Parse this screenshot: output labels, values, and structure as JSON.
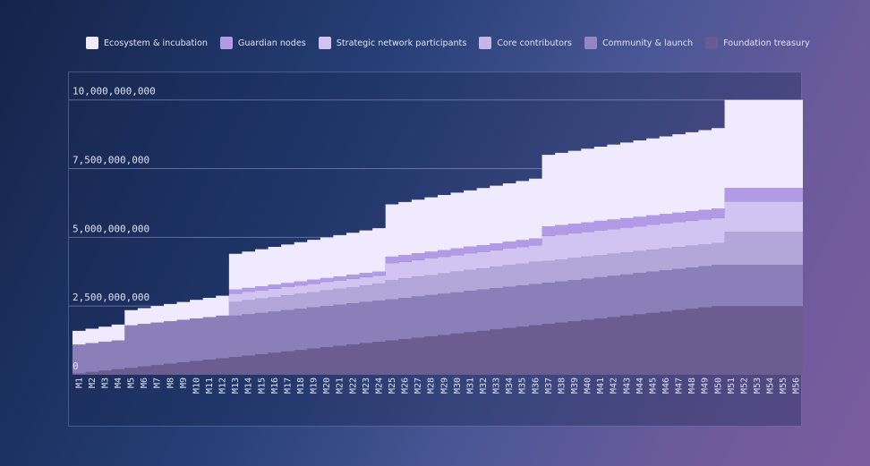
{
  "chart_data": {
    "type": "area",
    "stacked": true,
    "title": "",
    "xlabel": "",
    "ylabel": "",
    "ylim": [
      0,
      11000000000
    ],
    "grid": true,
    "legend_placement": "top",
    "yticks": [
      {
        "value": 0,
        "label": "0"
      },
      {
        "value": 2500000000,
        "label": "2,500,000,000"
      },
      {
        "value": 5000000000,
        "label": "5,000,000,000"
      },
      {
        "value": 7500000000,
        "label": "7,500,000,000"
      },
      {
        "value": 10000000000,
        "label": "10,000,000,000"
      }
    ],
    "categories": [
      "M1",
      "M2",
      "M3",
      "M4",
      "M5",
      "M6",
      "M7",
      "M8",
      "M9",
      "M10",
      "M11",
      "M12",
      "M13",
      "M14",
      "M15",
      "M16",
      "M17",
      "M18",
      "M19",
      "M20",
      "M21",
      "M22",
      "M23",
      "M24",
      "M25",
      "M26",
      "M27",
      "M28",
      "M29",
      "M30",
      "M31",
      "M32",
      "M33",
      "M34",
      "M35",
      "M36",
      "M37",
      "M38",
      "M39",
      "M40",
      "M41",
      "M42",
      "M43",
      "M44",
      "M45",
      "M46",
      "M47",
      "M48",
      "M49",
      "M50",
      "M51",
      "M52",
      "M53",
      "M54",
      "M55",
      "M56"
    ],
    "series": [
      {
        "name": "Foundation treasury",
        "color": "#6c5d91",
        "values": [
          50000000,
          100000000,
          150000000,
          200000000,
          250000000,
          300000000,
          350000000,
          400000000,
          450000000,
          500000000,
          550000000,
          600000000,
          650000000,
          700000000,
          750000000,
          800000000,
          850000000,
          900000000,
          950000000,
          1000000000,
          1050000000,
          1100000000,
          1150000000,
          1200000000,
          1250000000,
          1300000000,
          1350000000,
          1400000000,
          1450000000,
          1500000000,
          1550000000,
          1600000000,
          1650000000,
          1700000000,
          1750000000,
          1800000000,
          1850000000,
          1900000000,
          1950000000,
          2000000000,
          2050000000,
          2100000000,
          2150000000,
          2200000000,
          2250000000,
          2300000000,
          2350000000,
          2400000000,
          2450000000,
          2500000000,
          2500000000,
          2500000000,
          2500000000,
          2500000000,
          2500000000,
          2500000000
        ]
      },
      {
        "name": "Community & launch",
        "color": "#8a7fb8",
        "values": [
          1050000000,
          1050000000,
          1050000000,
          1050000000,
          1550000000,
          1550000000,
          1550000000,
          1550000000,
          1550000000,
          1550000000,
          1550000000,
          1550000000,
          1500000000,
          1500000000,
          1500000000,
          1500000000,
          1500000000,
          1500000000,
          1500000000,
          1500000000,
          1500000000,
          1500000000,
          1500000000,
          1500000000,
          1500000000,
          1500000000,
          1500000000,
          1500000000,
          1500000000,
          1500000000,
          1500000000,
          1500000000,
          1500000000,
          1500000000,
          1500000000,
          1500000000,
          1500000000,
          1500000000,
          1500000000,
          1500000000,
          1500000000,
          1500000000,
          1500000000,
          1500000000,
          1500000000,
          1500000000,
          1500000000,
          1500000000,
          1500000000,
          1500000000,
          1500000000,
          1500000000,
          1500000000,
          1500000000,
          1500000000,
          1500000000
        ]
      },
      {
        "name": "Core contributors",
        "color": "#b3a6d8",
        "values": [
          0,
          0,
          0,
          0,
          0,
          0,
          0,
          0,
          0,
          0,
          0,
          0,
          500000000,
          510000000,
          520000000,
          530000000,
          540000000,
          550000000,
          560000000,
          570000000,
          580000000,
          590000000,
          600000000,
          610000000,
          700000000,
          710000000,
          720000000,
          730000000,
          740000000,
          750000000,
          760000000,
          770000000,
          780000000,
          790000000,
          800000000,
          810000000,
          800000000,
          800000000,
          800000000,
          800000000,
          800000000,
          800000000,
          800000000,
          800000000,
          800000000,
          800000000,
          800000000,
          800000000,
          800000000,
          800000000,
          1200000000,
          1200000000,
          1200000000,
          1200000000,
          1200000000,
          1200000000
        ]
      },
      {
        "name": "Strategic network participants",
        "color": "#d2c4f2",
        "values": [
          0,
          0,
          0,
          0,
          0,
          0,
          0,
          0,
          0,
          0,
          0,
          0,
          300000000,
          300000000,
          300000000,
          300000000,
          300000000,
          300000000,
          300000000,
          300000000,
          300000000,
          300000000,
          300000000,
          300000000,
          600000000,
          600000000,
          600000000,
          600000000,
          600000000,
          600000000,
          600000000,
          600000000,
          600000000,
          600000000,
          600000000,
          600000000,
          900000000,
          900000000,
          900000000,
          900000000,
          900000000,
          900000000,
          900000000,
          900000000,
          900000000,
          900000000,
          900000000,
          900000000,
          900000000,
          900000000,
          1100000000,
          1100000000,
          1100000000,
          1100000000,
          1100000000,
          1100000000
        ]
      },
      {
        "name": "Guardian nodes",
        "color": "#b39ae6",
        "values": [
          0,
          0,
          0,
          0,
          0,
          0,
          0,
          0,
          0,
          0,
          0,
          0,
          150000000,
          150000000,
          150000000,
          150000000,
          150000000,
          150000000,
          150000000,
          150000000,
          150000000,
          150000000,
          150000000,
          150000000,
          250000000,
          250000000,
          250000000,
          250000000,
          250000000,
          250000000,
          250000000,
          250000000,
          250000000,
          250000000,
          250000000,
          250000000,
          350000000,
          350000000,
          350000000,
          350000000,
          350000000,
          350000000,
          350000000,
          350000000,
          350000000,
          350000000,
          350000000,
          350000000,
          350000000,
          350000000,
          500000000,
          500000000,
          500000000,
          500000000,
          500000000,
          500000000
        ]
      },
      {
        "name": "Ecosystem & incubation",
        "color": "#efeafe",
        "values": [
          500000000,
          525000000,
          550000000,
          575000000,
          550000000,
          575000000,
          600000000,
          625000000,
          650000000,
          675000000,
          700000000,
          725000000,
          1300000000,
          1325000000,
          1350000000,
          1375000000,
          1400000000,
          1425000000,
          1450000000,
          1475000000,
          1500000000,
          1525000000,
          1550000000,
          1575000000,
          1900000000,
          1925000000,
          1950000000,
          1975000000,
          2000000000,
          2025000000,
          2050000000,
          2075000000,
          2100000000,
          2125000000,
          2150000000,
          2175000000,
          2600000000,
          2625000000,
          2650000000,
          2675000000,
          2700000000,
          2725000000,
          2750000000,
          2775000000,
          2800000000,
          2825000000,
          2850000000,
          2875000000,
          2900000000,
          2925000000,
          3200000000,
          3200000000,
          3200000000,
          3200000000,
          3200000000,
          3200000000
        ]
      }
    ],
    "legend": [
      {
        "name": "Ecosystem & incubation",
        "color": "#efeafe"
      },
      {
        "name": "Guardian nodes",
        "color": "#b39ae6"
      },
      {
        "name": "Strategic network participants",
        "color": "#d2c4f2"
      },
      {
        "name": "Core contributors",
        "color": "#c5b6e6"
      },
      {
        "name": "Community & launch",
        "color": "#9486c2"
      },
      {
        "name": "Foundation treasury",
        "color": "#685b8f"
      }
    ]
  }
}
